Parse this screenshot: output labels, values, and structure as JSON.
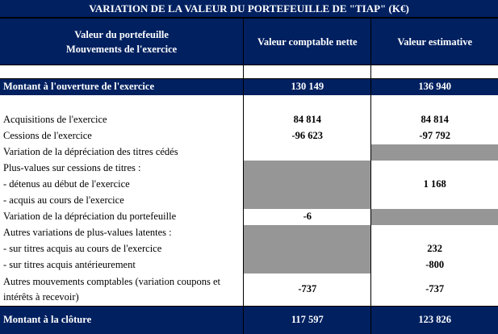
{
  "title": "VARIATION DE LA VALEUR DU PORTEFEUILLE DE \"TIAP\" (K€)",
  "header": {
    "col1_line1": "Valeur du portefeuille",
    "col1_line2": "Mouvements de l'exercice",
    "col2": "Valeur comptable nette",
    "col3": "Valeur estimative"
  },
  "opening": {
    "label": "Montant à l'ouverture de l'exercice",
    "vcn": "130 149",
    "ve": "136 940"
  },
  "rows": [
    {
      "label": "Acquisitions de l'exercice",
      "vcn": "84 814",
      "ve": "84 814"
    },
    {
      "label": "Cessions de l'exercice",
      "vcn": "-96 623",
      "ve": "-97 792"
    },
    {
      "label": "Variation de la dépréciation des titres cédés"
    },
    {
      "label": "Plus-values sur cessions de titres :"
    },
    {
      "label": "- détenus au début de l'exercice",
      "ve": "1 168"
    },
    {
      "label": "- acquis au cours de l'exercice"
    },
    {
      "label": "Variation de la dépréciation du portefeuille",
      "vcn": "-6"
    },
    {
      "label": "Autres variations de plus-values latentes :"
    },
    {
      "label": "- sur titres acquis au cours de l'exercice",
      "ve": "232"
    },
    {
      "label": "- sur titres acquis antérieurement",
      "ve": "-800"
    },
    {
      "label_line1": "Autres mouvements comptables (variation coupons et",
      "label_line2": "intérêts à recevoir)",
      "vcn": "-737",
      "ve": "-737"
    }
  ],
  "closing": {
    "label": "Montant à la clôture",
    "vcn": "117 597",
    "ve": "123 826"
  },
  "colors": {
    "header_bg": "#002060",
    "shade": "#969696"
  }
}
